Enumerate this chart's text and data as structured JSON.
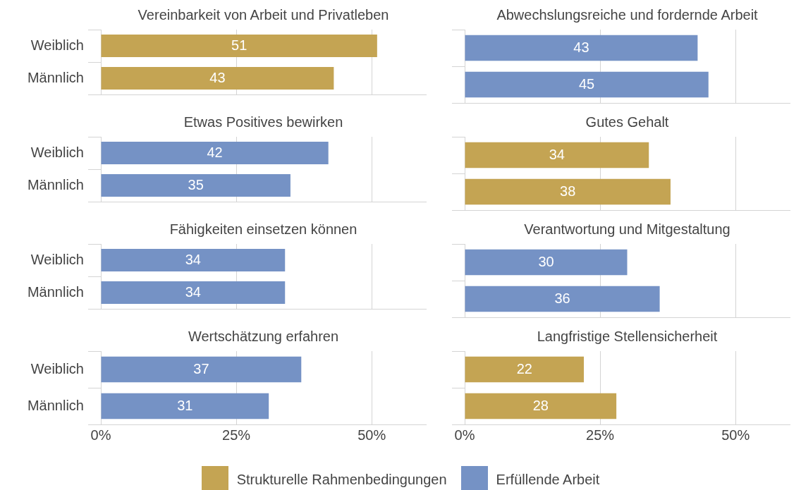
{
  "chart_data": [
    {
      "type": "bar",
      "orientation": "horizontal",
      "title": "Vereinbarkeit von Arbeit und Privatleben",
      "categories": [
        "Weiblich",
        "Männlich"
      ],
      "series": [
        {
          "name": "Strukturelle Rahmenbedingungen",
          "color": "#c4a453",
          "values": [
            51,
            43
          ]
        }
      ],
      "xlim": [
        0,
        60
      ],
      "xticks": [
        {
          "value": 0,
          "label": "0%"
        },
        {
          "value": 25,
          "label": "25%"
        },
        {
          "value": 50,
          "label": "50%"
        }
      ],
      "grid": "x",
      "tick_labels": "y",
      "data_labels": true,
      "legend": "bottom"
    },
    {
      "type": "bar",
      "orientation": "horizontal",
      "title": "Abwechslungsreiche und fordernde Arbeit",
      "categories": [
        "Weiblich",
        "Männlich"
      ],
      "series": [
        {
          "name": "Erfüllende Arbeit",
          "color": "#7592c5",
          "values": [
            43,
            45
          ]
        }
      ],
      "xlim": [
        0,
        60
      ],
      "xticks": [
        {
          "value": 0,
          "label": "0%"
        },
        {
          "value": 25,
          "label": "25%"
        },
        {
          "value": 50,
          "label": "50%"
        }
      ],
      "grid": "x",
      "tick_labels": false,
      "data_labels": true,
      "legend": "bottom"
    },
    {
      "type": "bar",
      "orientation": "horizontal",
      "title": "Etwas Positives bewirken",
      "categories": [
        "Weiblich",
        "Männlich"
      ],
      "series": [
        {
          "name": "Erfüllende Arbeit",
          "color": "#7592c5",
          "values": [
            42,
            35
          ]
        }
      ],
      "xlim": [
        0,
        60
      ],
      "xticks": [
        {
          "value": 0,
          "label": "0%"
        },
        {
          "value": 25,
          "label": "25%"
        },
        {
          "value": 50,
          "label": "50%"
        }
      ],
      "grid": "x",
      "tick_labels": "y",
      "data_labels": true,
      "legend": "bottom"
    },
    {
      "type": "bar",
      "orientation": "horizontal",
      "title": "Gutes Gehalt",
      "categories": [
        "Weiblich",
        "Männlich"
      ],
      "series": [
        {
          "name": "Strukturelle Rahmenbedingungen",
          "color": "#c4a453",
          "values": [
            34,
            38
          ]
        }
      ],
      "xlim": [
        0,
        60
      ],
      "xticks": [
        {
          "value": 0,
          "label": "0%"
        },
        {
          "value": 25,
          "label": "25%"
        },
        {
          "value": 50,
          "label": "50%"
        }
      ],
      "grid": "x",
      "tick_labels": false,
      "data_labels": true,
      "legend": "bottom"
    },
    {
      "type": "bar",
      "orientation": "horizontal",
      "title": "Fähigkeiten einsetzen können",
      "categories": [
        "Weiblich",
        "Männlich"
      ],
      "series": [
        {
          "name": "Erfüllende Arbeit",
          "color": "#7592c5",
          "values": [
            34,
            34
          ]
        }
      ],
      "xlim": [
        0,
        60
      ],
      "xticks": [
        {
          "value": 0,
          "label": "0%"
        },
        {
          "value": 25,
          "label": "25%"
        },
        {
          "value": 50,
          "label": "50%"
        }
      ],
      "grid": "x",
      "tick_labels": "y",
      "data_labels": true,
      "legend": "bottom"
    },
    {
      "type": "bar",
      "orientation": "horizontal",
      "title": "Verantwortung und Mitgestaltung",
      "categories": [
        "Weiblich",
        "Männlich"
      ],
      "series": [
        {
          "name": "Erfüllende Arbeit",
          "color": "#7592c5",
          "values": [
            30,
            36
          ]
        }
      ],
      "xlim": [
        0,
        60
      ],
      "xticks": [
        {
          "value": 0,
          "label": "0%"
        },
        {
          "value": 25,
          "label": "25%"
        },
        {
          "value": 50,
          "label": "50%"
        }
      ],
      "grid": "x",
      "tick_labels": false,
      "data_labels": true,
      "legend": "bottom"
    },
    {
      "type": "bar",
      "orientation": "horizontal",
      "title": "Wertschätzung erfahren",
      "categories": [
        "Weiblich",
        "Männlich"
      ],
      "series": [
        {
          "name": "Erfüllende Arbeit",
          "color": "#7592c5",
          "values": [
            37,
            31
          ]
        }
      ],
      "xlim": [
        0,
        60
      ],
      "xticks": [
        {
          "value": 0,
          "label": "0%"
        },
        {
          "value": 25,
          "label": "25%"
        },
        {
          "value": 50,
          "label": "50%"
        }
      ],
      "grid": "x",
      "data_labels": true,
      "legend": "bottom"
    },
    {
      "type": "bar",
      "orientation": "horizontal",
      "title": "Langfristige Stellensicherheit",
      "categories": [
        "Weiblich",
        "Männlich"
      ],
      "series": [
        {
          "name": "Strukturelle Rahmenbedingungen",
          "color": "#c4a453",
          "values": [
            22,
            28
          ]
        }
      ],
      "xlim": [
        0,
        60
      ],
      "xticks": [
        {
          "value": 0,
          "label": "0%"
        },
        {
          "value": 25,
          "label": "25%"
        },
        {
          "value": 50,
          "label": "50%"
        }
      ],
      "grid": "x",
      "tick_labels": "x",
      "data_labels": true,
      "legend": "bottom"
    }
  ]
}
